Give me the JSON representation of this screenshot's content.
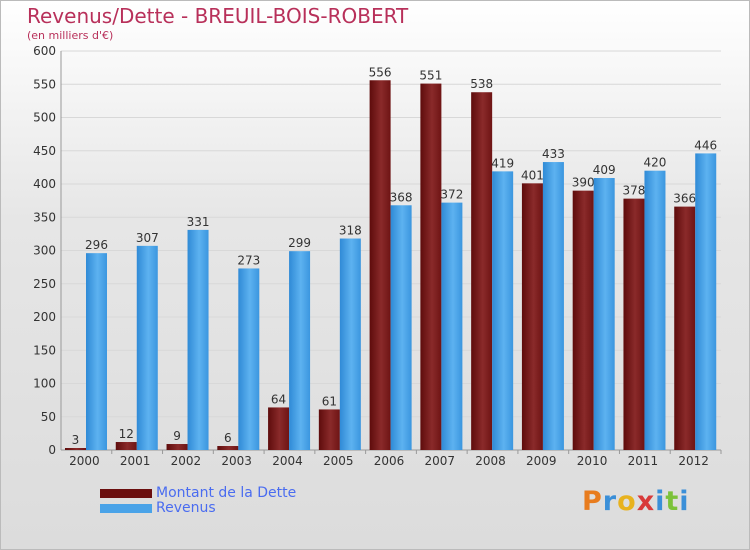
{
  "title": "Revenus/Dette - BREUIL-BOIS-ROBERT",
  "subtitle": "(en milliers d'€)",
  "colors": {
    "dette": "#7a1c1c",
    "revenus": "#4aa3e8",
    "title": "#b8305a",
    "legend_text": "#4a6cf0"
  },
  "legend": [
    {
      "label": "Montant de la Dette",
      "color": "#6b0f0f"
    },
    {
      "label": "Revenus",
      "color": "#4aa3e8"
    }
  ],
  "logo": {
    "letters": [
      "P",
      "r",
      "o",
      "x",
      "i",
      "t",
      "i"
    ],
    "colors": [
      "#e87c1e",
      "#3a8fd8",
      "#e8b21e",
      "#d83a3a",
      "#3a8fd8",
      "#7cc23a",
      "#3a8fd8"
    ]
  },
  "chart_data": {
    "type": "bar",
    "categories": [
      "2000",
      "2001",
      "2002",
      "2003",
      "2004",
      "2005",
      "2006",
      "2007",
      "2008",
      "2009",
      "2010",
      "2011",
      "2012"
    ],
    "series": [
      {
        "name": "Montant de la Dette",
        "values": [
          3,
          12,
          9,
          6,
          64,
          61,
          556,
          551,
          538,
          401,
          390,
          378,
          366
        ]
      },
      {
        "name": "Revenus",
        "values": [
          296,
          307,
          331,
          273,
          299,
          318,
          368,
          372,
          419,
          433,
          409,
          420,
          446
        ]
      }
    ],
    "yticks": [
      0,
      50,
      100,
      150,
      200,
      250,
      300,
      350,
      400,
      450,
      500,
      550,
      600
    ],
    "ylim": [
      0,
      600
    ],
    "grid": true,
    "legend_position": "bottom-left"
  }
}
